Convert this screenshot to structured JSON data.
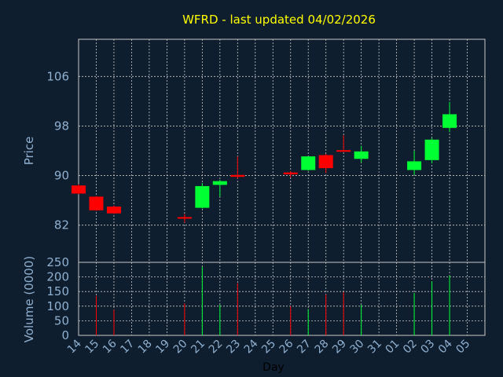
{
  "chart_data": {
    "type": "candlestick",
    "title": "WFRD - last updated 04/02/2026",
    "ylabel": "Price",
    "volume_label": "Volume (0000)",
    "xlabel": "Day",
    "ylim": [
      76,
      112
    ],
    "yticks": [
      82,
      90,
      98,
      106
    ],
    "volume_ylim": [
      0,
      250
    ],
    "volume_yticks": [
      0,
      50,
      100,
      150,
      200,
      250
    ],
    "x_ticks": [
      "14",
      "15",
      "16",
      "17",
      "18",
      "19",
      "20",
      "21",
      "22",
      "23",
      "24",
      "25",
      "26",
      "27",
      "28",
      "29",
      "30",
      "31",
      "01",
      "02",
      "03",
      "04",
      "05"
    ],
    "grid": true,
    "colors": {
      "background": "#0f1e2e",
      "up": "#00ff33",
      "down": "#ff0000",
      "title": "#ffff00",
      "axis_text": "#8fb0d0",
      "grid": "#c8c8c8"
    },
    "candles": [
      {
        "day": "14",
        "open": 88.4,
        "high": 88.6,
        "low": 87.0,
        "close": 87.1,
        "volume": 0
      },
      {
        "day": "15",
        "open": 86.6,
        "high": 86.7,
        "low": 84.3,
        "close": 84.4,
        "volume": 135
      },
      {
        "day": "16",
        "open": 85.0,
        "high": 85.2,
        "low": 83.8,
        "close": 83.9,
        "volume": 88
      },
      {
        "day": "20",
        "open": 83.3,
        "high": 83.8,
        "low": 82.4,
        "close": 83.1,
        "volume": 110
      },
      {
        "day": "21",
        "open": 84.8,
        "high": 88.8,
        "low": 84.7,
        "close": 88.3,
        "volume": 235
      },
      {
        "day": "22",
        "open": 88.5,
        "high": 89.3,
        "low": 86.6,
        "close": 89.1,
        "volume": 105
      },
      {
        "day": "23",
        "open": 90.1,
        "high": 93.1,
        "low": 89.5,
        "close": 89.8,
        "volume": 178
      },
      {
        "day": "26",
        "open": 90.5,
        "high": 90.7,
        "low": 89.7,
        "close": 90.2,
        "volume": 100
      },
      {
        "day": "27",
        "open": 90.9,
        "high": 93.1,
        "low": 90.8,
        "close": 93.1,
        "volume": 90
      },
      {
        "day": "28",
        "open": 93.3,
        "high": 93.5,
        "low": 90.4,
        "close": 91.2,
        "volume": 140
      },
      {
        "day": "29",
        "open": 94.1,
        "high": 96.5,
        "low": 93.9,
        "close": 94.0,
        "volume": 148
      },
      {
        "day": "30",
        "open": 92.7,
        "high": 94.8,
        "low": 92.1,
        "close": 93.9,
        "volume": 105
      },
      {
        "day": "02",
        "open": 90.9,
        "high": 94.0,
        "low": 90.1,
        "close": 92.3,
        "volume": 145
      },
      {
        "day": "03",
        "open": 92.5,
        "high": 96.1,
        "low": 92.0,
        "close": 95.8,
        "volume": 185
      },
      {
        "day": "04",
        "open": 97.7,
        "high": 101.9,
        "low": 97.0,
        "close": 99.9,
        "volume": 205
      }
    ]
  }
}
